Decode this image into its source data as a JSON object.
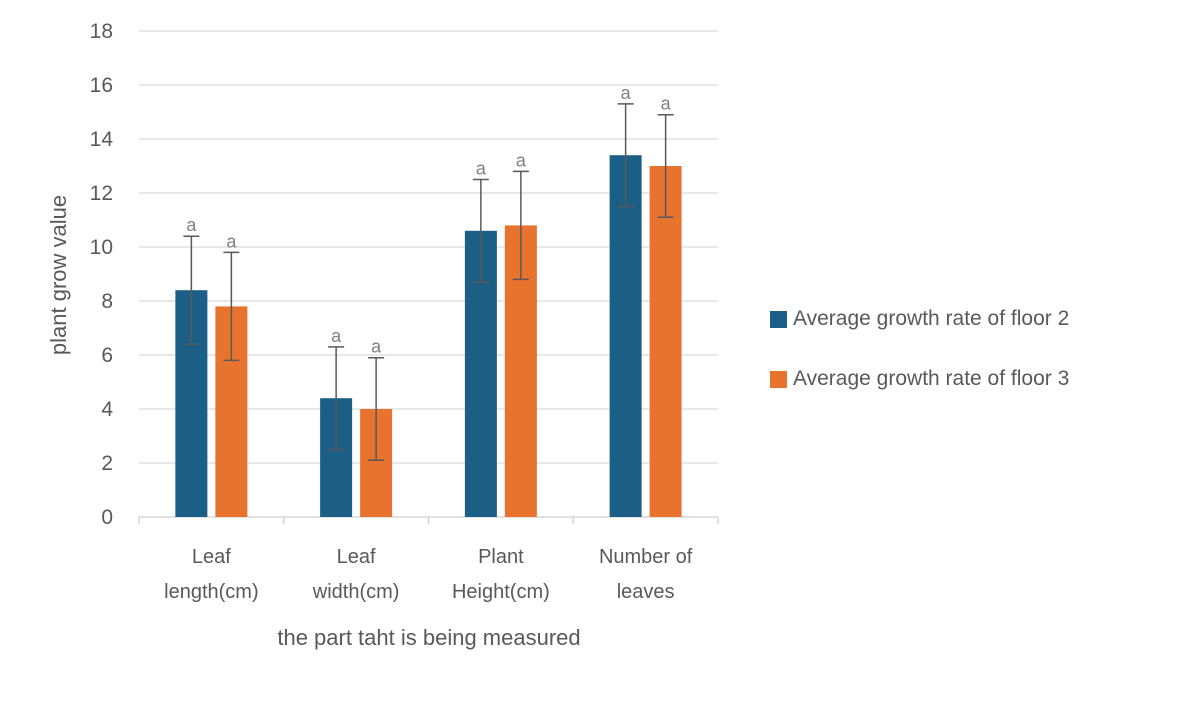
{
  "chart_data": {
    "type": "bar",
    "title": "",
    "xlabel": "the part taht is being measured",
    "ylabel": "plant grow value",
    "ylim": [
      0,
      18
    ],
    "yticks": [
      0,
      2,
      4,
      6,
      8,
      10,
      12,
      14,
      16,
      18
    ],
    "grid": true,
    "legend_position": "right",
    "categories": [
      [
        "Leaf",
        "length(cm)"
      ],
      [
        "Leaf",
        "width(cm)"
      ],
      [
        "Plant",
        "Height(cm)"
      ],
      [
        "Number of",
        "leaves"
      ]
    ],
    "series": [
      {
        "name": "Average growth rate of floor 2",
        "color": "#1b5e86",
        "values": [
          8.4,
          4.4,
          10.6,
          13.4
        ],
        "error": [
          2.0,
          1.9,
          1.9,
          1.9
        ],
        "significance": [
          "a",
          "a",
          "a",
          "a"
        ]
      },
      {
        "name": "Average growth rate of floor 3",
        "color": "#e8732e",
        "values": [
          7.8,
          4.0,
          10.8,
          13.0
        ],
        "error": [
          2.0,
          1.9,
          2.0,
          1.9
        ],
        "significance": [
          "a",
          "a",
          "a",
          "a"
        ]
      }
    ]
  }
}
